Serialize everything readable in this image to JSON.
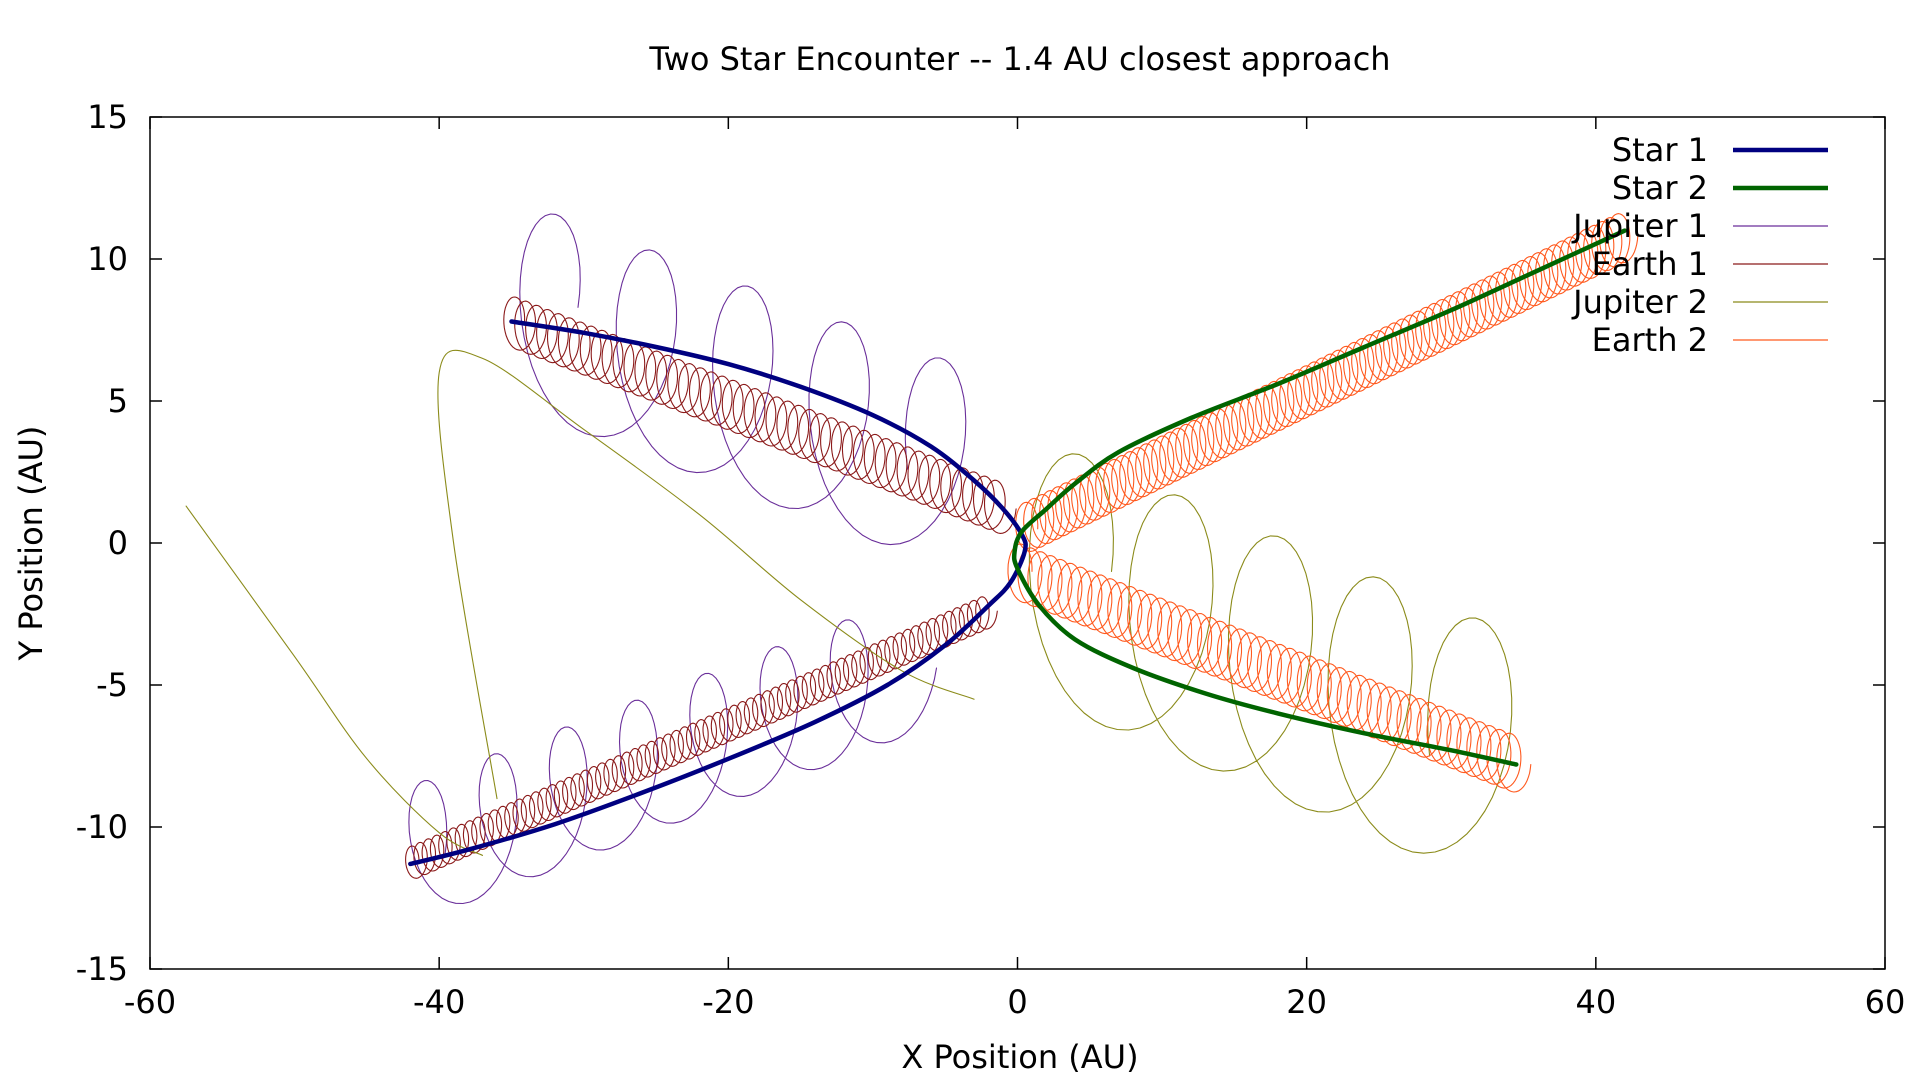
{
  "chart_data": {
    "type": "line",
    "title": "Two Star Encounter -- 1.4 AU closest approach",
    "xlabel": "X Position (AU)",
    "ylabel": "Y Position (AU)",
    "xlim": [
      -60,
      60
    ],
    "ylim": [
      -15,
      15
    ],
    "xticks": [
      -60,
      -40,
      -20,
      0,
      20,
      40,
      60
    ],
    "yticks": [
      -15,
      -10,
      -5,
      0,
      5,
      10,
      15
    ],
    "grid": false,
    "legend_position": "top-right",
    "series": [
      {
        "name": "Star 1",
        "color": "#000080",
        "style": "thick",
        "points": [
          [
            -35,
            7.8
          ],
          [
            -30,
            7.4
          ],
          [
            -25,
            6.9
          ],
          [
            -20,
            6.3
          ],
          [
            -15,
            5.5
          ],
          [
            -10,
            4.5
          ],
          [
            -6,
            3.4
          ],
          [
            -3,
            2.2
          ],
          [
            -1,
            1.2
          ],
          [
            0.3,
            0.3
          ],
          [
            0.5,
            -0.3
          ],
          [
            -0.5,
            -1.4
          ],
          [
            -2,
            -2.2
          ],
          [
            -5,
            -3.6
          ],
          [
            -9,
            -5.0
          ],
          [
            -14,
            -6.3
          ],
          [
            -20,
            -7.6
          ],
          [
            -26,
            -8.8
          ],
          [
            -32,
            -9.9
          ],
          [
            -38,
            -10.8
          ],
          [
            -42,
            -11.3
          ]
        ]
      },
      {
        "name": "Star 2",
        "color": "#006400",
        "style": "thick",
        "points": [
          [
            42,
            11.0
          ],
          [
            36,
            9.6
          ],
          [
            30,
            8.2
          ],
          [
            24,
            6.9
          ],
          [
            18,
            5.6
          ],
          [
            12,
            4.4
          ],
          [
            7,
            3.2
          ],
          [
            4,
            2.1
          ],
          [
            2,
            1.2
          ],
          [
            0.3,
            0.4
          ],
          [
            -0.2,
            -0.3
          ],
          [
            0,
            -0.9
          ],
          [
            1.5,
            -2.2
          ],
          [
            4,
            -3.4
          ],
          [
            8,
            -4.4
          ],
          [
            13,
            -5.3
          ],
          [
            18,
            -6.0
          ],
          [
            24,
            -6.7
          ],
          [
            30,
            -7.3
          ],
          [
            34.5,
            -7.8
          ]
        ]
      },
      {
        "name": "Jupiter 1",
        "color": "#6a2f9a",
        "style": "loops",
        "path1": {
          "x0": -34,
          "y0": 8.3,
          "x1": -4,
          "y1": 2.6,
          "r": 3.6,
          "count": 4.5
        },
        "path2": {
          "x0": -42,
          "y0": -11.0,
          "x1": -8,
          "y1": -4.4,
          "r": 2.4,
          "count": 7
        }
      },
      {
        "name": "Earth 1",
        "color": "#8b1a1a",
        "style": "loops",
        "path1": {
          "x0": -35,
          "y0": 7.8,
          "x1": -1,
          "y1": 1.2,
          "r": 0.9,
          "count": 45
        },
        "path2": {
          "x0": -42,
          "y0": -11.3,
          "x1": -2,
          "y1": -2.4,
          "r": 0.6,
          "count": 70
        }
      },
      {
        "name": "Jupiter 2",
        "color": "#8b8b1a",
        "style": "mixed",
        "free1": [
          [
            -57.5,
            1.3
          ],
          [
            -50,
            -4.0
          ],
          [
            -45,
            -7.6
          ],
          [
            -40,
            -10.2
          ],
          [
            -37,
            -11.0
          ]
        ],
        "free2": [
          [
            -36,
            -9.0
          ],
          [
            -39,
            0
          ],
          [
            -40,
            6.0
          ],
          [
            -37,
            6.5
          ],
          [
            -30,
            4.0
          ],
          [
            -22,
            1.0
          ],
          [
            -15,
            -2.0
          ],
          [
            -8,
            -4.5
          ],
          [
            -3,
            -5.5
          ]
        ],
        "path1": {
          "x0": 2,
          "y0": -1.0,
          "x1": 33,
          "y1": -7.5,
          "r": 4.5,
          "count": 4.5
        }
      },
      {
        "name": "Earth 2",
        "color": "#ff5a1f",
        "style": "loops",
        "path1": {
          "x0": 0.5,
          "y0": 0.5,
          "x1": 42,
          "y1": 10.8,
          "r": 0.9,
          "count": 75
        },
        "path2": {
          "x0": 0,
          "y0": -1.0,
          "x1": 34.5,
          "y1": -7.8,
          "r": 1.0,
          "count": 50
        }
      }
    ]
  }
}
